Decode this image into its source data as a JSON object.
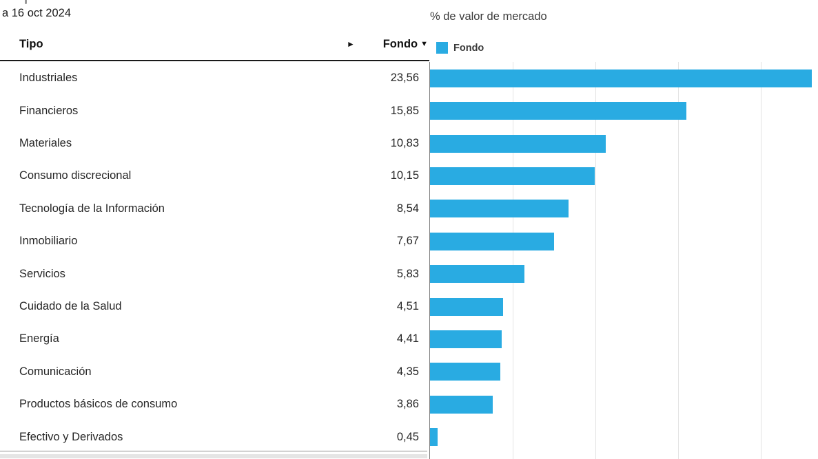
{
  "page": {
    "as_of_date": "a 16 oct 2024",
    "chart_title": "% de valor de mercado"
  },
  "table_header": {
    "col_tipo": "Tipo",
    "col_fondo": "Fondo",
    "sort_desc_icon": "▼",
    "expand_icon": "►"
  },
  "legend": {
    "label": "Fondo",
    "swatch_color": "#29abe2"
  },
  "chart_data": {
    "type": "bar",
    "orientation": "horizontal",
    "title": "% de valor de mercado",
    "legend_entries": [
      "Fondo"
    ],
    "legend_position": "top",
    "categories": [
      "Industriales",
      "Financieros",
      "Materiales",
      "Consumo discrecional",
      "Tecnología de la Información",
      "Inmobiliario",
      "Servicios",
      "Cuidado de la Salud",
      "Energía",
      "Comunicación",
      "Productos básicos de consumo",
      "Efectivo y Derivados"
    ],
    "values": [
      23.56,
      15.85,
      10.83,
      10.15,
      8.54,
      7.67,
      5.83,
      4.51,
      4.41,
      4.35,
      3.86,
      0.45
    ],
    "value_labels": [
      "23,56",
      "15,85",
      "10,83",
      "10,15",
      "8,54",
      "7,67",
      "5,83",
      "4,51",
      "4,41",
      "4,35",
      "3,86",
      "0,45"
    ],
    "xlim": [
      0,
      24
    ],
    "gridline_interval": 5,
    "grid": true,
    "bar_color": "#29abe2"
  }
}
